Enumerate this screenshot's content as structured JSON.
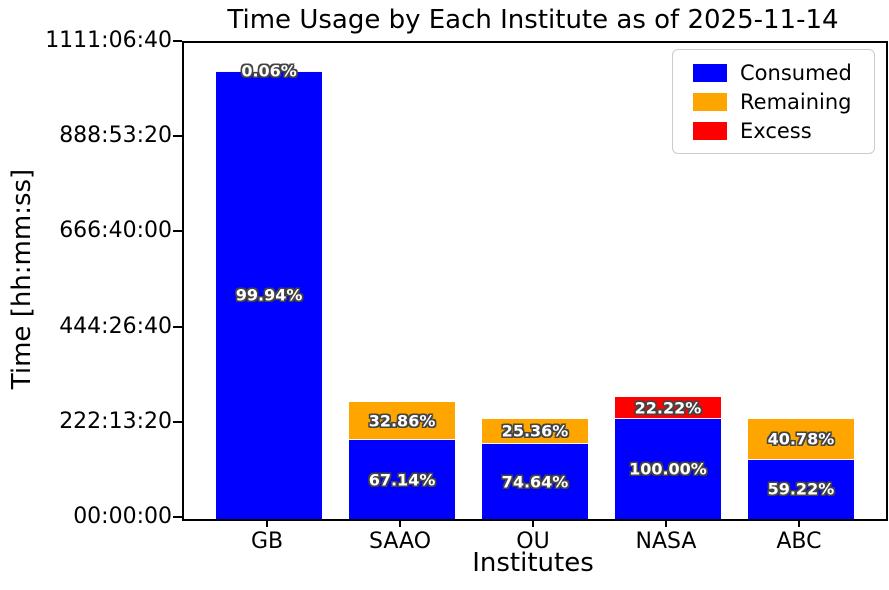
{
  "chart_data": {
    "type": "stacked_bar",
    "title": "Time Usage by Each Institute as of 2025-11-14",
    "xlabel": "Institutes",
    "ylabel": "Time [hh:mm:ss]",
    "grid": false,
    "background_color": "#ffffff",
    "bar_label_color": "#ffffff",
    "bar_label_outline_color": "#444444",
    "x_categories": [
      "GB",
      "SAAO",
      "OU",
      "NASA",
      "ABC"
    ],
    "y_axis": {
      "unit": "seconds",
      "range": [
        0,
        4000000
      ],
      "ticks": [
        {
          "seconds": 0,
          "label": "00:00:00"
        },
        {
          "seconds": 800000,
          "label": "222:13:20"
        },
        {
          "seconds": 1600000,
          "label": "444:26:40"
        },
        {
          "seconds": 2400000,
          "label": "666:40:00"
        },
        {
          "seconds": 3200000,
          "label": "888:53:20"
        },
        {
          "seconds": 4000000,
          "label": "1111:06:40"
        }
      ]
    },
    "legend": {
      "position": "upper right",
      "items": [
        {
          "label": "Consumed",
          "color": "#0000ff"
        },
        {
          "label": "Remaining",
          "color": "#ffa500"
        },
        {
          "label": "Excess",
          "color": "#ff0000"
        }
      ]
    },
    "series_colors": {
      "Consumed": "#0000ff",
      "Remaining": "#ffa500",
      "Excess": "#ff0000"
    },
    "bars": [
      {
        "category": "GB",
        "segments": [
          {
            "series": "Consumed",
            "approx_seconds": 3762000,
            "label": "99.94%"
          },
          {
            "series": "Remaining",
            "approx_seconds": 2300,
            "label": "0.06%"
          }
        ]
      },
      {
        "category": "SAAO",
        "segments": [
          {
            "series": "Consumed",
            "approx_seconds": 661500,
            "label": "67.14%"
          },
          {
            "series": "Remaining",
            "approx_seconds": 323800,
            "label": "32.86%"
          }
        ]
      },
      {
        "category": "OU",
        "segments": [
          {
            "series": "Consumed",
            "approx_seconds": 628500,
            "label": "74.64%"
          },
          {
            "series": "Remaining",
            "approx_seconds": 213600,
            "label": "25.36%"
          }
        ]
      },
      {
        "category": "NASA",
        "segments": [
          {
            "series": "Consumed",
            "approx_seconds": 842100,
            "label": "100.00%"
          },
          {
            "series": "Excess",
            "approx_seconds": 187100,
            "label": "22.22%"
          }
        ]
      },
      {
        "category": "ABC",
        "segments": [
          {
            "series": "Consumed",
            "approx_seconds": 498700,
            "label": "59.22%"
          },
          {
            "series": "Remaining",
            "approx_seconds": 343400,
            "label": "40.78%"
          }
        ]
      }
    ]
  }
}
